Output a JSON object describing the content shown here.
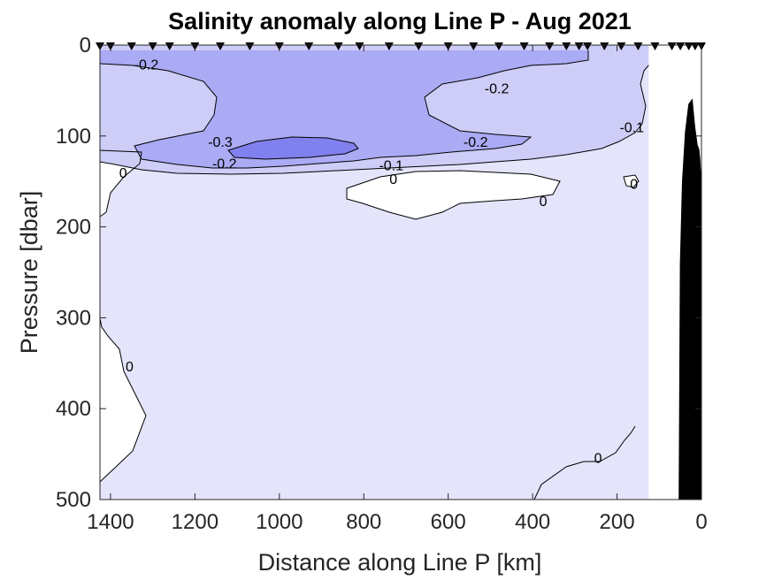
{
  "chart_data": {
    "type": "contour",
    "title": "Salinity anomaly along Line P - Aug 2021",
    "xlabel": "Distance along Line P [km]",
    "ylabel": "Pressure [dbar]",
    "xlim": [
      1425,
      0
    ],
    "ylim": [
      500,
      0
    ],
    "x_reversed": true,
    "y_reversed": true,
    "xticks": [
      1400,
      1200,
      1000,
      800,
      600,
      400,
      200,
      0
    ],
    "yticks": [
      0,
      100,
      200,
      300,
      400,
      500
    ],
    "grid": false,
    "contour_levels": [
      -0.3,
      -0.2,
      -0.1,
      0
    ],
    "fill_colors": {
      "lt_-0.3": "#8080ee",
      "-0.3_to_-0.2": "#aaaaf5",
      "-0.2_to_-0.1": "#cdcdf8",
      "-0.1_to_0": "#e4e4fb",
      "gt_0": "#ffffff"
    },
    "stations_km": [
      1425,
      1400,
      1350,
      1300,
      1260,
      1200,
      1140,
      1070,
      1000,
      930,
      860,
      810,
      740,
      670,
      600,
      540,
      480,
      420,
      360,
      320,
      290,
      270,
      230,
      190,
      150,
      110,
      70,
      50,
      30,
      15,
      0
    ],
    "data_extent_km": [
      1425,
      125
    ],
    "contour_labels": [
      {
        "text": "-0.2",
        "x": 1315,
        "y": 22
      },
      {
        "text": "-0.2",
        "x": 485,
        "y": 48
      },
      {
        "text": "-0.3",
        "x": 1140,
        "y": 107
      },
      {
        "text": "-0.2",
        "x": 1130,
        "y": 131
      },
      {
        "text": "-0.2",
        "x": 535,
        "y": 107
      },
      {
        "text": "-0.1",
        "x": 735,
        "y": 133
      },
      {
        "text": "0",
        "x": 730,
        "y": 148
      },
      {
        "text": "-0.1",
        "x": 165,
        "y": 91
      },
      {
        "text": "0",
        "x": 1370,
        "y": 141
      },
      {
        "text": "0",
        "x": 160,
        "y": 153
      },
      {
        "text": "0",
        "x": 375,
        "y": 172
      },
      {
        "text": "0",
        "x": 1355,
        "y": 354
      },
      {
        "text": "0",
        "x": 245,
        "y": 455
      }
    ],
    "bathymetry": [
      [
        53,
        500
      ],
      [
        50,
        240
      ],
      [
        45,
        150
      ],
      [
        38,
        95
      ],
      [
        30,
        65
      ],
      [
        22,
        60
      ],
      [
        16,
        90
      ],
      [
        10,
        110
      ],
      [
        6,
        115
      ],
      [
        4,
        125
      ],
      [
        2,
        140
      ],
      [
        1,
        500
      ]
    ]
  }
}
